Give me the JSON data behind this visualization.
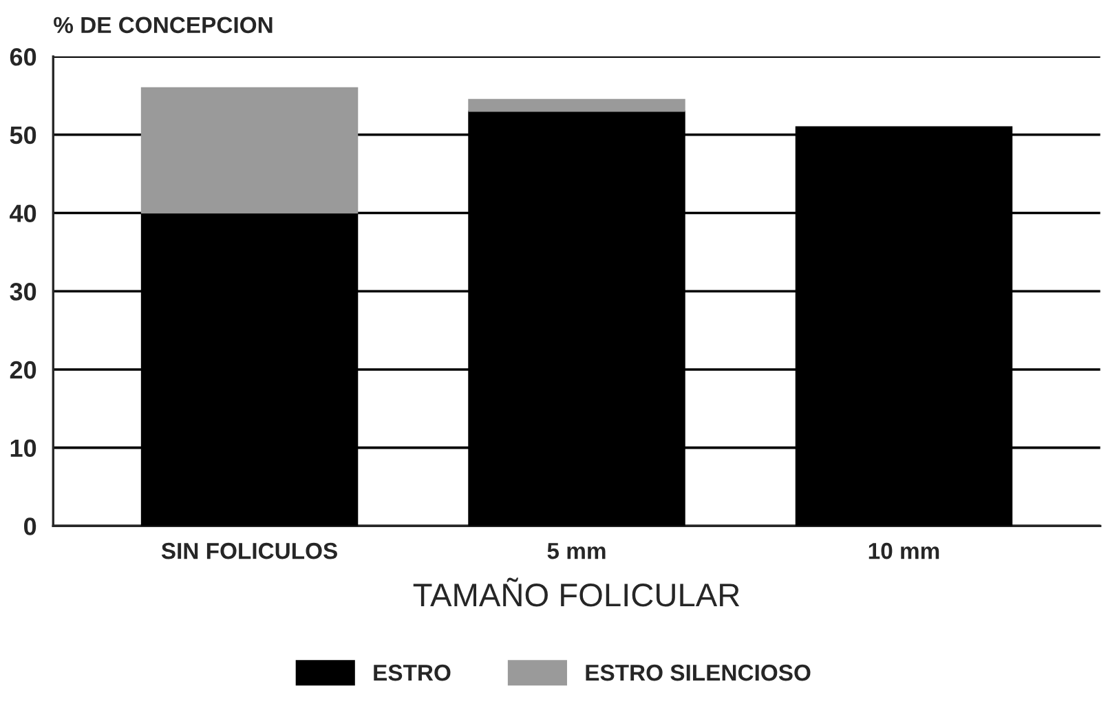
{
  "chart_data": {
    "type": "bar",
    "ylabel": "% DE CONCEPCION",
    "xlabel": "TAMAÑO FOLICULAR",
    "categories": [
      "SIN FOLICULOS",
      "5 mm",
      "10 mm"
    ],
    "stacked": true,
    "series": [
      {
        "name": "ESTRO",
        "color": "#000000",
        "values": [
          40,
          53,
          51
        ]
      },
      {
        "name": "ESTRO SILENCIOSO",
        "color": "#9a9a9a",
        "values": [
          16,
          1.5,
          null
        ]
      }
    ],
    "ylim": [
      0,
      60
    ],
    "yticks": [
      0,
      10,
      20,
      30,
      40,
      50,
      60
    ],
    "grid": "y",
    "legend": "bottom"
  }
}
